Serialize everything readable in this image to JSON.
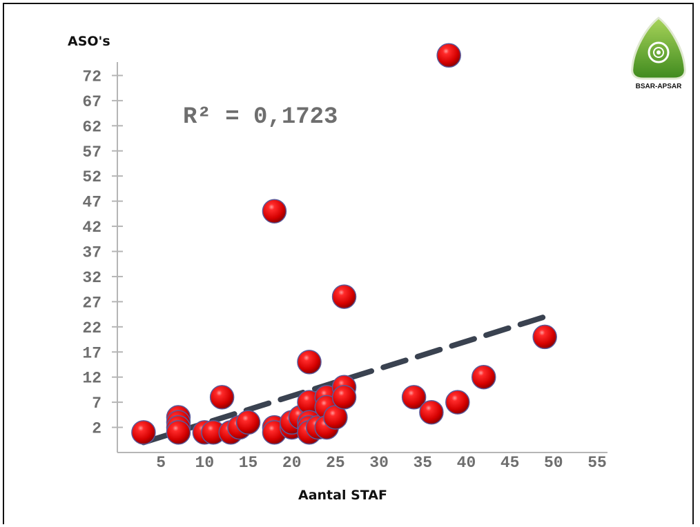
{
  "logo": {
    "text": "BSAR-APSAR"
  },
  "annotation": "R² = 0,1723",
  "chart_data": {
    "type": "scatter",
    "title": "",
    "xlabel": "Aantal STAF",
    "ylabel": "ASO's",
    "xlim": [
      0,
      55
    ],
    "ylim": [
      -3,
      77
    ],
    "x_ticks": [
      5,
      10,
      15,
      20,
      25,
      30,
      35,
      40,
      45,
      50,
      55
    ],
    "y_ticks": [
      2,
      7,
      12,
      17,
      22,
      27,
      32,
      37,
      42,
      47,
      52,
      57,
      62,
      67,
      72
    ],
    "grid": false,
    "legend": "none",
    "marker_color": "#e00000",
    "trendline": {
      "type": "linear",
      "r_squared": 0.1723,
      "x": [
        3,
        49
      ],
      "y": [
        -1,
        24
      ],
      "style": "dashed",
      "color": "#3a4250"
    },
    "points": [
      {
        "x": 3,
        "y": 1
      },
      {
        "x": 7,
        "y": 4
      },
      {
        "x": 7,
        "y": 3
      },
      {
        "x": 7,
        "y": 2
      },
      {
        "x": 7,
        "y": 1
      },
      {
        "x": 10,
        "y": 1
      },
      {
        "x": 11,
        "y": 1
      },
      {
        "x": 12,
        "y": 8
      },
      {
        "x": 13,
        "y": 1
      },
      {
        "x": 14,
        "y": 2
      },
      {
        "x": 15,
        "y": 3
      },
      {
        "x": 18,
        "y": 45
      },
      {
        "x": 18,
        "y": 2
      },
      {
        "x": 18,
        "y": 1
      },
      {
        "x": 20,
        "y": 2
      },
      {
        "x": 20,
        "y": 3
      },
      {
        "x": 21,
        "y": 4
      },
      {
        "x": 22,
        "y": 15
      },
      {
        "x": 22,
        "y": 7
      },
      {
        "x": 22,
        "y": 3
      },
      {
        "x": 22,
        "y": 2
      },
      {
        "x": 22,
        "y": 1
      },
      {
        "x": 23,
        "y": 2
      },
      {
        "x": 24,
        "y": 8
      },
      {
        "x": 24,
        "y": 6
      },
      {
        "x": 24,
        "y": 2
      },
      {
        "x": 25,
        "y": 4
      },
      {
        "x": 26,
        "y": 28
      },
      {
        "x": 26,
        "y": 10
      },
      {
        "x": 26,
        "y": 8
      },
      {
        "x": 34,
        "y": 8
      },
      {
        "x": 36,
        "y": 5
      },
      {
        "x": 38,
        "y": 76
      },
      {
        "x": 39,
        "y": 7
      },
      {
        "x": 42,
        "y": 12
      },
      {
        "x": 49,
        "y": 20
      }
    ]
  }
}
